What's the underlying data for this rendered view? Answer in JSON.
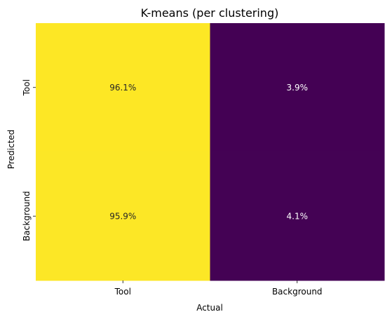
{
  "chart_data": {
    "type": "heatmap",
    "title": "K-means (per clustering)",
    "xlabel": "Actual",
    "ylabel": "Predicted",
    "x_categories": [
      "Tool",
      "Background"
    ],
    "y_categories": [
      "Tool",
      "Background"
    ],
    "values": [
      [
        96.1,
        3.9
      ],
      [
        95.9,
        4.1
      ]
    ],
    "cell_labels": [
      [
        "96.1%",
        "3.9%"
      ],
      [
        "95.9%",
        "4.1%"
      ]
    ],
    "colormap": "viridis",
    "colors": {
      "high": "#fde725",
      "low": "#440154",
      "text_on_high": "#262626",
      "text_on_low": "#ffffff"
    },
    "value_range": [
      0,
      100
    ],
    "grid": false
  }
}
